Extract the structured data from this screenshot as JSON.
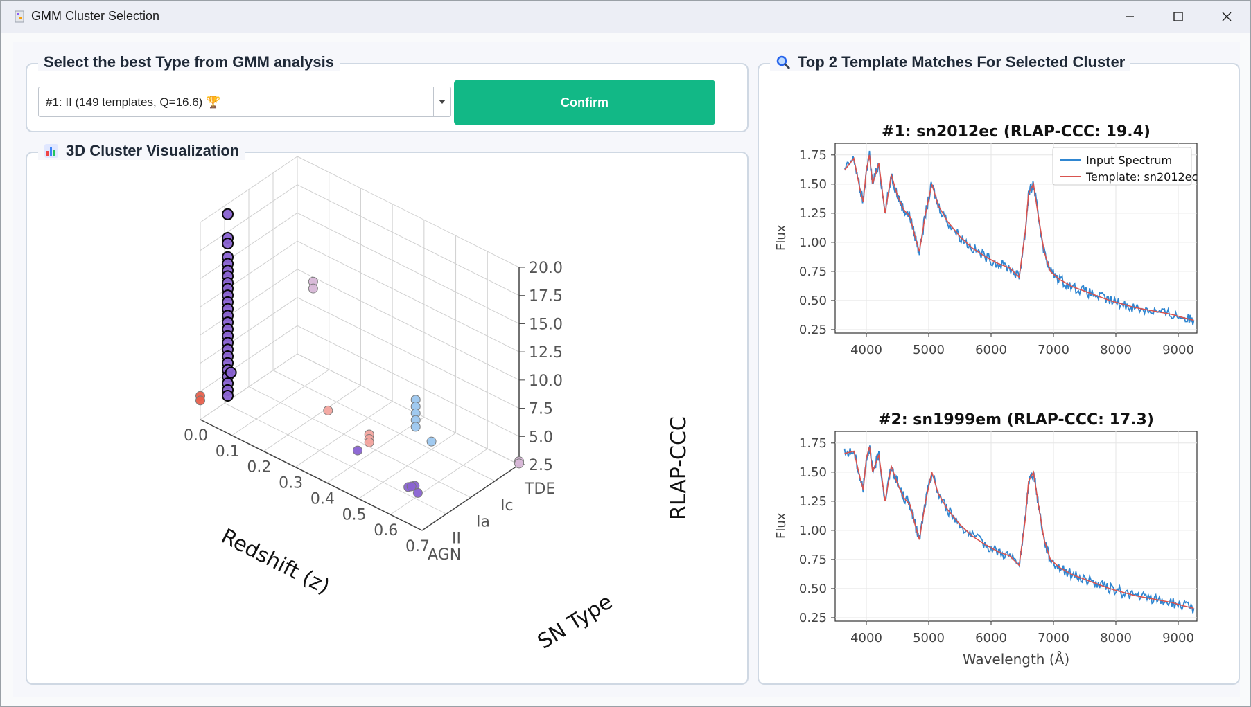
{
  "window": {
    "title": "GMM Cluster Selection"
  },
  "type_panel": {
    "legend": "Select the best Type from GMM analysis",
    "selected_option": "#1: II (149 templates, Q=16.6) 🏆",
    "confirm_label": "Confirm"
  },
  "viz_panel": {
    "legend": "3D Cluster Visualization",
    "icon": "bar-chart-icon"
  },
  "matches_panel": {
    "legend": "Top 2 Template Matches For Selected Cluster",
    "icon": "magnifier-icon"
  },
  "chart_data": [
    {
      "type": "scatter",
      "projection": "3d",
      "xlabel": "Redshift (z)",
      "ylabel": "SN Type",
      "zlabel": "RLAP-CCC",
      "xticks": [
        "0.0",
        "0.1",
        "0.2",
        "0.3",
        "0.4",
        "0.5",
        "0.6",
        "0.7"
      ],
      "yticks": [
        "AGN",
        "II",
        "Ia",
        "Ic",
        "TDE"
      ],
      "zticks": [
        "2.5",
        "5.0",
        "7.5",
        "10.0",
        "12.5",
        "15.0",
        "17.5",
        "20.0"
      ],
      "xlim": [
        0,
        0.7
      ],
      "zlim": [
        2.5,
        20
      ],
      "series": [
        {
          "color": "#8a63d2",
          "highlighted": true,
          "points": [
            {
              "z": 0.01,
              "type": "II",
              "rlap": 19.4
            },
            {
              "z": 0.01,
              "type": "II",
              "rlap": 17.3
            },
            {
              "z": 0.01,
              "type": "II",
              "rlap": 16.8
            },
            {
              "z": 0.01,
              "type": "II",
              "rlap": 15.6
            },
            {
              "z": 0.01,
              "type": "II",
              "rlap": 15.0
            },
            {
              "z": 0.01,
              "type": "II",
              "rlap": 14.4
            },
            {
              "z": 0.01,
              "type": "II",
              "rlap": 13.9
            },
            {
              "z": 0.01,
              "type": "II",
              "rlap": 13.3
            },
            {
              "z": 0.01,
              "type": "II",
              "rlap": 12.8
            },
            {
              "z": 0.01,
              "type": "II",
              "rlap": 12.2
            },
            {
              "z": 0.01,
              "type": "II",
              "rlap": 11.6
            },
            {
              "z": 0.01,
              "type": "II",
              "rlap": 11.0
            },
            {
              "z": 0.01,
              "type": "II",
              "rlap": 10.4
            },
            {
              "z": 0.01,
              "type": "II",
              "rlap": 9.8
            },
            {
              "z": 0.01,
              "type": "II",
              "rlap": 9.2
            },
            {
              "z": 0.01,
              "type": "II",
              "rlap": 8.6
            },
            {
              "z": 0.01,
              "type": "II",
              "rlap": 8.0
            },
            {
              "z": 0.01,
              "type": "II",
              "rlap": 7.4
            },
            {
              "z": 0.01,
              "type": "II",
              "rlap": 6.8
            },
            {
              "z": 0.01,
              "type": "II",
              "rlap": 6.2
            },
            {
              "z": 0.01,
              "type": "II",
              "rlap": 5.6
            },
            {
              "z": 0.01,
              "type": "II",
              "rlap": 5.0
            },
            {
              "z": 0.01,
              "type": "II",
              "rlap": 4.4
            },
            {
              "z": 0.01,
              "type": "II",
              "rlap": 3.8
            },
            {
              "z": 0.01,
              "type": "II",
              "rlap": 3.3
            },
            {
              "z": 0.02,
              "type": "II",
              "rlap": 5.5
            }
          ]
        },
        {
          "color": "#8a63d2",
          "points": [
            {
              "z": 0.42,
              "type": "II",
              "rlap": 4.2
            },
            {
              "z": 0.58,
              "type": "II",
              "rlap": 3.2
            },
            {
              "z": 0.6,
              "type": "II",
              "rlap": 3.6
            },
            {
              "z": 0.61,
              "type": "II",
              "rlap": 3.1
            },
            {
              "z": 0.59,
              "type": "II",
              "rlap": 3.4
            }
          ]
        },
        {
          "color": "#e8604c",
          "points": [
            {
              "z": 0.0,
              "type": "AGN",
              "rlap": 4.6
            },
            {
              "z": 0.0,
              "type": "AGN",
              "rlap": 4.2
            }
          ]
        },
        {
          "color": "#f4a6a0",
          "points": [
            {
              "z": 0.25,
              "type": "Ia",
              "rlap": 3.9
            },
            {
              "z": 0.38,
              "type": "Ia",
              "rlap": 3.6
            },
            {
              "z": 0.38,
              "type": "Ia",
              "rlap": 3.2
            },
            {
              "z": 0.38,
              "type": "Ia",
              "rlap": 2.9
            }
          ]
        },
        {
          "color": "#9cc8f0",
          "points": [
            {
              "z": 0.45,
              "type": "Ic",
              "rlap": 6.2
            },
            {
              "z": 0.45,
              "type": "Ic",
              "rlap": 5.6
            },
            {
              "z": 0.45,
              "type": "Ic",
              "rlap": 5.0
            },
            {
              "z": 0.45,
              "type": "Ic",
              "rlap": 4.4
            },
            {
              "z": 0.45,
              "type": "Ic",
              "rlap": 3.8
            },
            {
              "z": 0.5,
              "type": "Ic",
              "rlap": 3.2
            }
          ]
        },
        {
          "color": "#d8b8d8",
          "points": [
            {
              "z": 0.05,
              "type": "TDE",
              "rlap": 9.6
            },
            {
              "z": 0.05,
              "type": "TDE",
              "rlap": 9.0
            },
            {
              "z": 0.7,
              "type": "TDE",
              "rlap": 2.8
            },
            {
              "z": 0.7,
              "type": "TDE",
              "rlap": 2.6
            }
          ]
        }
      ]
    },
    {
      "type": "line",
      "title": "#1: sn2012ec (RLAP-CCC: 19.4)",
      "ylabel": "Flux",
      "xlim": [
        3500,
        9300
      ],
      "ylim": [
        0.22,
        1.85
      ],
      "xticks": [
        "4000",
        "5000",
        "6000",
        "7000",
        "8000",
        "9000"
      ],
      "yticks": [
        "0.25",
        "0.50",
        "0.75",
        "1.00",
        "1.25",
        "1.50",
        "1.75"
      ],
      "legend": [
        "Input Spectrum",
        "Template: sn2012ec"
      ],
      "legend_position": "top-right",
      "grid": true,
      "series": [
        {
          "name": "Input Spectrum",
          "color": "#2f86d1",
          "noise": 0.045,
          "x": [
            3650,
            3800,
            3900,
            3950,
            4000,
            4050,
            4100,
            4200,
            4300,
            4400,
            4500,
            4600,
            4700,
            4780,
            4850,
            4950,
            5050,
            5150,
            5300,
            5500,
            5700,
            5900,
            6100,
            6300,
            6450,
            6550,
            6600,
            6680,
            6750,
            6850,
            6950,
            7100,
            7300,
            7500,
            7700,
            7900,
            8100,
            8300,
            8500,
            8700,
            8900,
            9100,
            9250
          ],
          "y": [
            1.62,
            1.72,
            1.45,
            1.35,
            1.62,
            1.75,
            1.5,
            1.68,
            1.25,
            1.58,
            1.4,
            1.28,
            1.22,
            1.05,
            0.92,
            1.25,
            1.5,
            1.32,
            1.18,
            1.05,
            0.95,
            0.88,
            0.82,
            0.78,
            0.7,
            1.1,
            1.42,
            1.5,
            1.25,
            0.92,
            0.75,
            0.68,
            0.62,
            0.58,
            0.54,
            0.5,
            0.47,
            0.44,
            0.42,
            0.4,
            0.38,
            0.35,
            0.33
          ]
        },
        {
          "name": "Template: sn2012ec",
          "color": "#d9534f",
          "noise": 0,
          "x": [
            3650,
            3800,
            3900,
            3950,
            4000,
            4050,
            4100,
            4200,
            4300,
            4400,
            4500,
            4600,
            4700,
            4780,
            4850,
            4950,
            5050,
            5150,
            5300,
            5500,
            5700,
            5900,
            6100,
            6300,
            6450,
            6550,
            6600,
            6680,
            6750,
            6850,
            6950,
            7100,
            7300,
            7500,
            7700,
            7900,
            8100,
            8300,
            8500,
            8700,
            8900,
            9100,
            9250
          ],
          "y": [
            1.62,
            1.72,
            1.45,
            1.35,
            1.62,
            1.75,
            1.5,
            1.68,
            1.25,
            1.58,
            1.4,
            1.28,
            1.22,
            1.05,
            0.92,
            1.25,
            1.5,
            1.32,
            1.18,
            1.05,
            0.95,
            0.88,
            0.82,
            0.78,
            0.7,
            1.1,
            1.42,
            1.5,
            1.25,
            0.92,
            0.75,
            0.68,
            0.62,
            0.58,
            0.54,
            0.5,
            0.47,
            0.44,
            0.42,
            0.4,
            0.38,
            0.35,
            0.33
          ]
        }
      ]
    },
    {
      "type": "line",
      "title": "#2: sn1999em (RLAP-CCC: 17.3)",
      "xlabel": "Wavelength (Å)",
      "ylabel": "Flux",
      "xlim": [
        3500,
        9300
      ],
      "ylim": [
        0.22,
        1.85
      ],
      "xticks": [
        "4000",
        "5000",
        "6000",
        "7000",
        "8000",
        "9000"
      ],
      "yticks": [
        "0.25",
        "0.50",
        "0.75",
        "1.00",
        "1.25",
        "1.50",
        "1.75"
      ],
      "grid": true,
      "series": [
        {
          "color": "#2f86d1",
          "noise": 0.045,
          "x": [
            3650,
            3800,
            3900,
            3950,
            4000,
            4050,
            4100,
            4200,
            4300,
            4400,
            4500,
            4600,
            4700,
            4780,
            4850,
            4950,
            5050,
            5150,
            5300,
            5500,
            5700,
            5900,
            6100,
            6300,
            6450,
            6550,
            6600,
            6680,
            6750,
            6850,
            6950,
            7100,
            7300,
            7500,
            7700,
            7900,
            8100,
            8300,
            8500,
            8700,
            8900,
            9100,
            9250
          ],
          "y": [
            1.66,
            1.68,
            1.45,
            1.35,
            1.62,
            1.72,
            1.5,
            1.65,
            1.25,
            1.55,
            1.4,
            1.28,
            1.22,
            1.05,
            0.92,
            1.25,
            1.5,
            1.32,
            1.18,
            1.05,
            0.95,
            0.88,
            0.82,
            0.78,
            0.7,
            1.1,
            1.42,
            1.5,
            1.25,
            0.92,
            0.75,
            0.68,
            0.62,
            0.58,
            0.54,
            0.5,
            0.47,
            0.44,
            0.42,
            0.4,
            0.38,
            0.35,
            0.33
          ]
        },
        {
          "color": "#d9534f",
          "noise": 0,
          "x": [
            3650,
            3800,
            3900,
            3950,
            4000,
            4050,
            4100,
            4200,
            4300,
            4400,
            4500,
            4600,
            4700,
            4780,
            4850,
            4950,
            5050,
            5150,
            5300,
            5500,
            5700,
            5900,
            6100,
            6300,
            6450,
            6550,
            6600,
            6680,
            6750,
            6850,
            6950,
            7100,
            7300,
            7500,
            7700,
            7900,
            8100,
            8300,
            8500,
            8700,
            8900,
            9100,
            9250
          ],
          "y": [
            1.66,
            1.68,
            1.45,
            1.35,
            1.62,
            1.72,
            1.5,
            1.65,
            1.25,
            1.55,
            1.4,
            1.28,
            1.22,
            1.05,
            0.92,
            1.25,
            1.5,
            1.32,
            1.18,
            1.05,
            0.95,
            0.88,
            0.82,
            0.78,
            0.7,
            1.1,
            1.42,
            1.5,
            1.25,
            0.92,
            0.75,
            0.68,
            0.62,
            0.58,
            0.54,
            0.5,
            0.47,
            0.44,
            0.42,
            0.4,
            0.38,
            0.35,
            0.33
          ]
        }
      ]
    }
  ]
}
